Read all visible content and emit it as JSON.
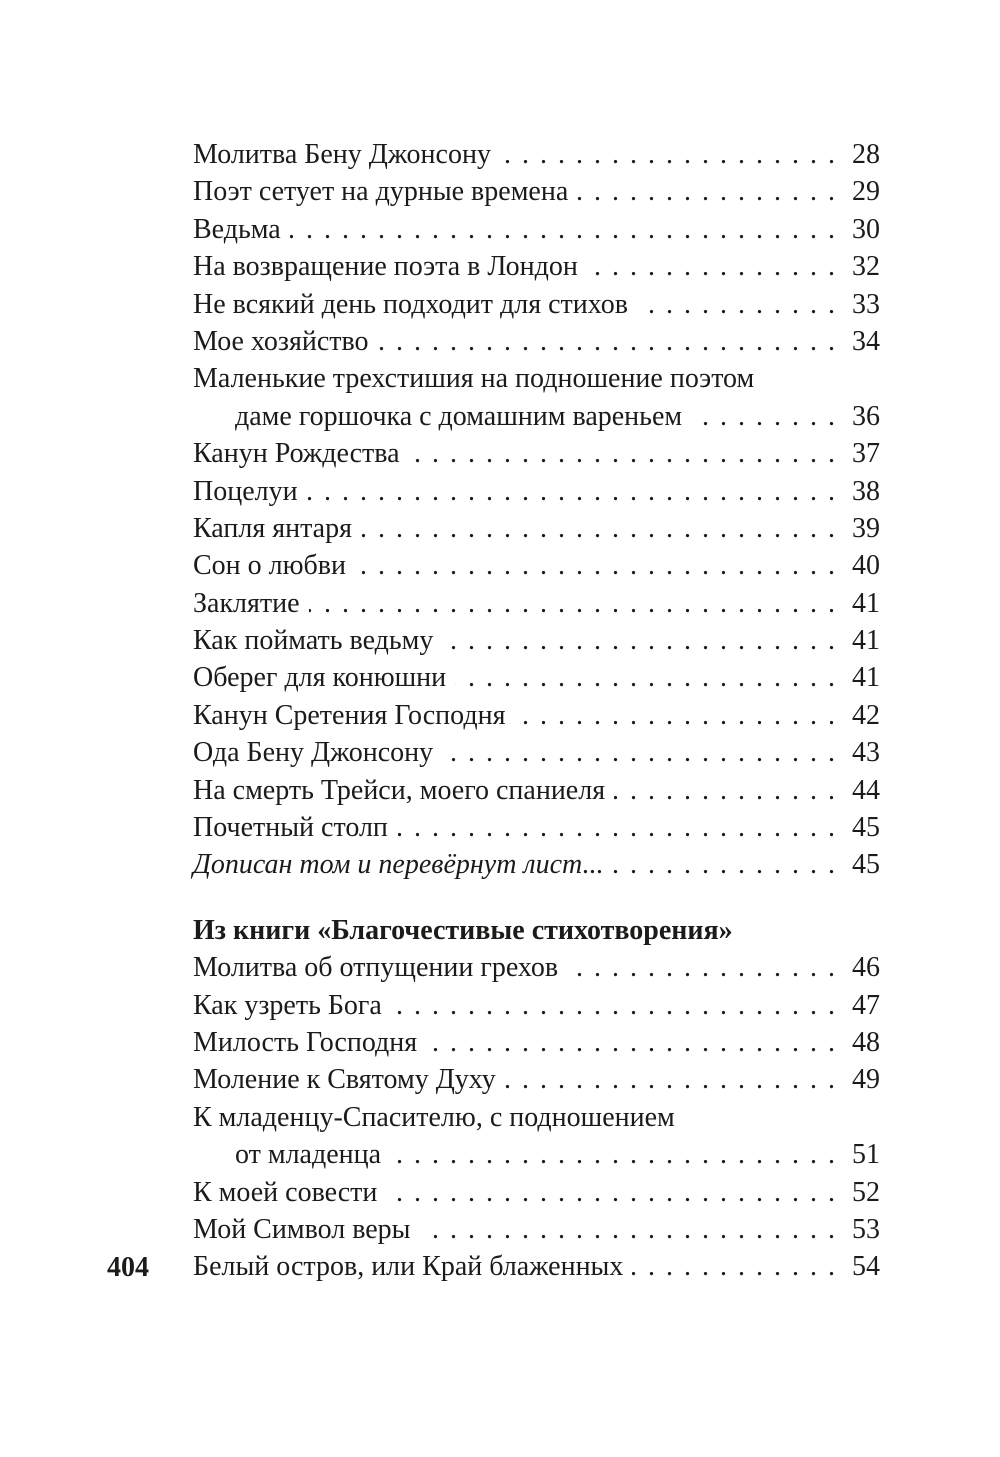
{
  "page": {
    "background": "#ffffff",
    "text_color": "#1c1b19",
    "folio": "404"
  },
  "toc": {
    "sections": [
      {
        "heading": "",
        "entries": [
          {
            "lines": [
              "Молитва Бену Джонсону"
            ],
            "page": "28"
          },
          {
            "lines": [
              "Поэт сетует на дурные времена"
            ],
            "page": "29"
          },
          {
            "lines": [
              "Ведьма"
            ],
            "page": "30"
          },
          {
            "lines": [
              "На возвращение поэта в Лондон"
            ],
            "page": "32"
          },
          {
            "lines": [
              "Не всякий день подходит для стихов"
            ],
            "page": "33"
          },
          {
            "lines": [
              "Мое хозяйство"
            ],
            "page": "34"
          },
          {
            "lines": [
              "Маленькие трехстишия на подношение поэтом",
              "даме горшочка с домашним вареньем"
            ],
            "page": "36"
          },
          {
            "lines": [
              "Канун Рождества"
            ],
            "page": "37"
          },
          {
            "lines": [
              "Поцелуи"
            ],
            "page": "38"
          },
          {
            "lines": [
              "Капля янтаря"
            ],
            "page": "39"
          },
          {
            "lines": [
              "Сон о любви"
            ],
            "page": "40"
          },
          {
            "lines": [
              "Заклятие"
            ],
            "page": "41"
          },
          {
            "lines": [
              "Как поймать ведьму"
            ],
            "page": "41"
          },
          {
            "lines": [
              "Оберег для конюшни"
            ],
            "page": "41"
          },
          {
            "lines": [
              "Канун Сретения Господня"
            ],
            "page": "42"
          },
          {
            "lines": [
              "Ода Бену Джонсону"
            ],
            "page": "43"
          },
          {
            "lines": [
              "На смерть Трейси, моего спаниеля"
            ],
            "page": "44"
          },
          {
            "lines": [
              "Почетный столп"
            ],
            "page": "45"
          },
          {
            "lines": [
              "Дописан том и перевёрнут лист..."
            ],
            "page": "45",
            "style": "italic"
          }
        ]
      },
      {
        "heading": "Из книги «Благочестивые стихотворения»",
        "entries": [
          {
            "lines": [
              "Молитва об отпущении грехов"
            ],
            "page": "46"
          },
          {
            "lines": [
              "Как узреть Бога"
            ],
            "page": "47"
          },
          {
            "lines": [
              "Милость Господня"
            ],
            "page": "48"
          },
          {
            "lines": [
              "Моление к Святому Духу"
            ],
            "page": "49"
          },
          {
            "lines": [
              "К младенцу-Спасителю, с подношением",
              "от младенца"
            ],
            "page": "51"
          },
          {
            "lines": [
              "К моей совести"
            ],
            "page": "52"
          },
          {
            "lines": [
              "Мой Символ веры"
            ],
            "page": "53"
          },
          {
            "lines": [
              "Белый остров, или Край блаженных"
            ],
            "page": "54"
          }
        ]
      }
    ]
  }
}
